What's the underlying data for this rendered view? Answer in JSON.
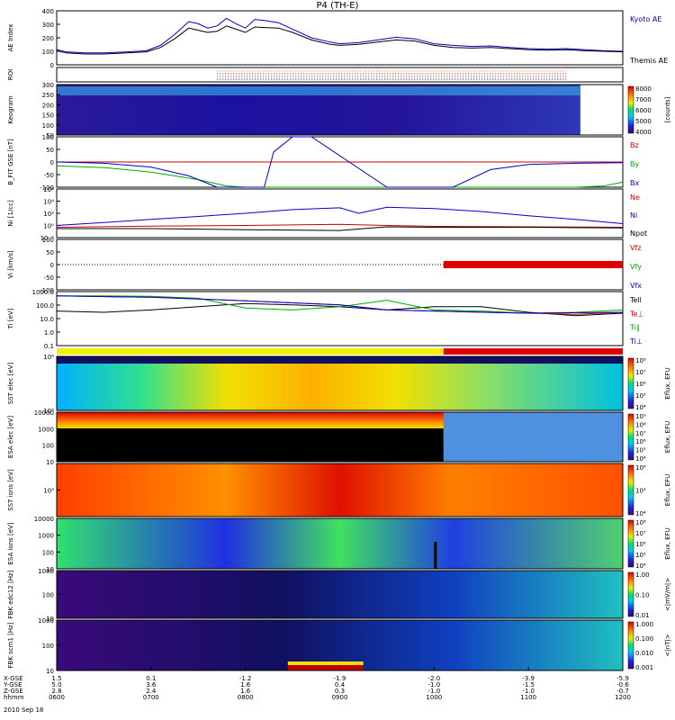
{
  "title": "P4 (TH-E)",
  "footer_date": "2010 Sep 18",
  "ephemeris": {
    "labels": [
      "X-GSE",
      "Y-GSE",
      "Z-GSE",
      "hhmm"
    ],
    "columns": [
      [
        "1.5",
        "5.0",
        "2.8",
        "0600"
      ],
      [
        "0.1",
        "3.6",
        "2.4",
        "0700"
      ],
      [
        "-1.2",
        "1.6",
        "1.6",
        "0800"
      ],
      [
        "-1.9",
        "0.4",
        "0.3",
        "0900"
      ],
      [
        "-2.0",
        "-1.0",
        "-1.0",
        "1000"
      ],
      [
        "-3.9",
        "-1.5",
        "-1.0",
        "1100"
      ],
      [
        "-5.9",
        "-0.6",
        "-0.7",
        "1200"
      ]
    ]
  },
  "chart_data": [
    {
      "type": "line",
      "id": "ae",
      "ylabel": "AE Index",
      "ylim": [
        -100,
        400
      ],
      "yticks": [
        "0",
        "100",
        "200",
        "300",
        "400"
      ],
      "series": [
        {
          "name": "Kyoto AE",
          "color": "#0000cc",
          "x": [
            0,
            0.1,
            0.3,
            0.5,
            0.75,
            0.95,
            1.1,
            1.25,
            1.4,
            1.5,
            1.6,
            1.7,
            1.8,
            1.9,
            2.0,
            2.1,
            2.2,
            2.35,
            2.5,
            2.7,
            2.9,
            3.0,
            3.2,
            3.4,
            3.6,
            3.8,
            4.0,
            4.2,
            4.4,
            4.6,
            4.8,
            5.0,
            5.2,
            5.4,
            5.6,
            5.8,
            6.0
          ],
          "y": [
            40,
            20,
            10,
            10,
            20,
            30,
            80,
            180,
            300,
            280,
            240,
            260,
            330,
            280,
            240,
            320,
            310,
            290,
            230,
            150,
            110,
            95,
            105,
            130,
            155,
            140,
            95,
            80,
            70,
            75,
            60,
            50,
            45,
            50,
            40,
            30,
            25
          ]
        },
        {
          "name": "Themis AE",
          "color": "#000000",
          "x": [
            0,
            0.1,
            0.3,
            0.5,
            0.75,
            0.95,
            1.1,
            1.25,
            1.4,
            1.5,
            1.6,
            1.7,
            1.8,
            1.9,
            2.0,
            2.1,
            2.2,
            2.35,
            2.5,
            2.7,
            2.9,
            3.0,
            3.2,
            3.4,
            3.6,
            3.8,
            4.0,
            4.2,
            4.4,
            4.6,
            4.8,
            5.0,
            5.2,
            5.4,
            5.6,
            5.8,
            6.0
          ],
          "y": [
            30,
            10,
            0,
            0,
            10,
            20,
            60,
            140,
            240,
            220,
            200,
            210,
            260,
            230,
            200,
            250,
            245,
            240,
            200,
            130,
            90,
            80,
            90,
            110,
            130,
            120,
            80,
            60,
            55,
            60,
            50,
            40,
            35,
            40,
            30,
            25,
            20
          ]
        }
      ]
    },
    {
      "type": "line",
      "id": "bfit",
      "ylabel": "B_FIT GSE [nT]",
      "ylim": [
        -100,
        100
      ],
      "yticks": [
        "-100",
        "-50",
        "0",
        "50",
        "100"
      ],
      "series": [
        {
          "name": "Bz",
          "color": "#cc0000",
          "x": [
            0,
            6
          ],
          "y": [
            0,
            0
          ]
        },
        {
          "name": "By",
          "color": "#00aa00",
          "x": [
            0,
            0.5,
            1.0,
            1.5,
            1.8,
            2.0,
            4.5,
            5.0,
            5.5,
            5.8,
            6.0
          ],
          "y": [
            -15,
            -22,
            -40,
            -70,
            -95,
            -100,
            -100,
            -100,
            -100,
            -95,
            -80
          ]
        },
        {
          "name": "Bx",
          "color": "#0000cc",
          "x": [
            0,
            0.5,
            1.0,
            1.4,
            1.7,
            2.2,
            2.3,
            2.5,
            2.7,
            3.5,
            4.2,
            4.6,
            5.0,
            5.5,
            6.0
          ],
          "y": [
            0,
            -5,
            -20,
            -55,
            -100,
            -100,
            40,
            100,
            100,
            -100,
            -100,
            -30,
            -10,
            -5,
            -3
          ]
        }
      ]
    },
    {
      "type": "line",
      "id": "ni",
      "ylabel": "Ni [1/cc]",
      "log": true,
      "ylim": [
        0.01,
        1000000
      ],
      "yticks": [
        "10⁻²",
        "10⁰",
        "10²",
        "10⁴",
        "10⁶"
      ],
      "series": [
        {
          "name": "Ne",
          "color": "#cc0000",
          "x": [
            0,
            1,
            2,
            3,
            3.5,
            4,
            5,
            6
          ],
          "y": [
            0.5,
            0.8,
            1,
            1.5,
            1,
            0.7,
            0.6,
            0.5
          ]
        },
        {
          "name": "Ni",
          "color": "#0000cc",
          "x": [
            0,
            0.5,
            1,
            1.5,
            2,
            2.5,
            3,
            3.2,
            3.5,
            4,
            4.5,
            5,
            5.5,
            6
          ],
          "y": [
            1,
            3,
            10,
            30,
            100,
            400,
            800,
            100,
            1000,
            600,
            200,
            40,
            10,
            2
          ]
        },
        {
          "name": "Npot",
          "color": "#000000",
          "x": [
            0,
            1,
            2,
            3,
            3.5,
            4,
            5,
            6
          ],
          "y": [
            0.3,
            0.3,
            0.2,
            0.15,
            0.6,
            0.5,
            0.5,
            0.4
          ]
        }
      ]
    },
    {
      "type": "line",
      "id": "vi",
      "ylabel": "Vi [km/s]",
      "ylim": [
        -100,
        100
      ],
      "yticks": [
        "-100",
        "-50",
        "0",
        "50",
        "100"
      ],
      "series": [
        {
          "name": "Vfz",
          "color": "#cc0000",
          "x": [
            4.1,
            6
          ],
          "y": [
            0,
            0
          ]
        },
        {
          "name": "Vfy",
          "color": "#00aa00",
          "x": [
            4.1,
            6
          ],
          "y": [
            0,
            0
          ]
        },
        {
          "name": "Vfx",
          "color": "#0000cc",
          "x": [
            4.1,
            6
          ],
          "y": [
            0,
            0
          ]
        }
      ]
    },
    {
      "type": "line",
      "id": "ti",
      "ylabel": "Ti [eV]",
      "log": true,
      "ylim": [
        0.05,
        5000
      ],
      "yticks": [
        "0.1",
        "1.0",
        "10.0",
        "100.0",
        "1000.0"
      ],
      "series": [
        {
          "name": "Tell",
          "color": "#000000",
          "x": [
            0,
            0.5,
            1,
            1.5,
            2,
            2.5,
            3,
            3.5,
            4,
            4.5,
            5,
            5.5,
            6
          ],
          "y": [
            80,
            60,
            100,
            200,
            400,
            300,
            200,
            100,
            200,
            200,
            60,
            30,
            50
          ]
        },
        {
          "name": "Te⊥",
          "color": "#cc0000",
          "x": [
            0,
            1,
            2,
            3,
            3.5,
            4,
            4.5,
            5,
            5.5,
            6
          ],
          "y": [
            2000,
            1500,
            700,
            300,
            100,
            80,
            60,
            50,
            40,
            60
          ]
        },
        {
          "name": "Ti∥",
          "color": "#00aa00",
          "x": [
            0,
            0.5,
            1,
            1.5,
            2,
            2.5,
            3,
            3.5,
            4,
            4.5,
            5,
            5.5,
            6
          ],
          "y": [
            2000,
            2000,
            1800,
            1200,
            150,
            100,
            200,
            800,
            100,
            80,
            50,
            60,
            100
          ]
        },
        {
          "name": "Ti⊥",
          "color": "#0000cc",
          "x": [
            0,
            1,
            2,
            3,
            3.5,
            4,
            5,
            6
          ],
          "y": [
            2000,
            1500,
            700,
            300,
            100,
            80,
            50,
            60
          ]
        }
      ]
    },
    {
      "type": "heatmap",
      "id": "keogram",
      "ylabel": "Keogram",
      "yticks": [
        "50",
        "100",
        "150",
        "200",
        "250",
        "300"
      ],
      "colorbar": {
        "label": "[counts]",
        "ticks": [
          "4000",
          "5000",
          "6000",
          "7000",
          "8000"
        ]
      }
    },
    {
      "type": "heatmap",
      "id": "sst-e",
      "ylabel": "SST elec [eV]",
      "yticks": [
        "10⁵",
        "10⁶"
      ],
      "colorbar": {
        "label": "Eflux, EFU",
        "ticks": [
          "10⁴",
          "10⁵",
          "10⁶",
          "10⁷",
          "10⁸"
        ]
      }
    },
    {
      "type": "heatmap",
      "id": "esa-e",
      "ylabel": "ESA elec [eV]",
      "yticks": [
        "10",
        "100",
        "1000",
        "10000"
      ],
      "colorbar": {
        "label": "Eflux, EFU",
        "ticks": [
          "10⁴",
          "10⁵",
          "10⁶",
          "10⁷",
          "10⁸",
          "10⁹"
        ]
      }
    },
    {
      "type": "heatmap",
      "id": "sst-i",
      "ylabel": "SST ions [eV]",
      "yticks": [
        "10⁵"
      ],
      "colorbar": {
        "label": "Eflux, EFU",
        "ticks": [
          "10⁴",
          "10⁵",
          "10⁶"
        ]
      }
    },
    {
      "type": "heatmap",
      "id": "esa-i",
      "ylabel": "ESA ions [eV]",
      "yticks": [
        "10",
        "100",
        "1000",
        "10000"
      ],
      "colorbar": {
        "label": "Eflux, EFU",
        "ticks": [
          "10⁴",
          "10⁵",
          "10⁶",
          "10⁷",
          "10⁸"
        ]
      }
    },
    {
      "type": "heatmap",
      "id": "fbk1",
      "ylabel": "FBK edc12 [Hz]",
      "yticks": [
        "10",
        "100",
        "1000"
      ],
      "colorbar": {
        "label": "<|mV/m|>",
        "ticks": [
          "0.01",
          "0.10",
          "1.00"
        ]
      }
    },
    {
      "type": "heatmap",
      "id": "fbk2",
      "ylabel": "FBK scm1 [Hz]",
      "yticks": [
        "10",
        "100",
        "1000"
      ],
      "colorbar": {
        "label": "<|nT|>",
        "ticks": [
          "0.001",
          "0.010",
          "0.100",
          "1.000"
        ]
      }
    }
  ]
}
